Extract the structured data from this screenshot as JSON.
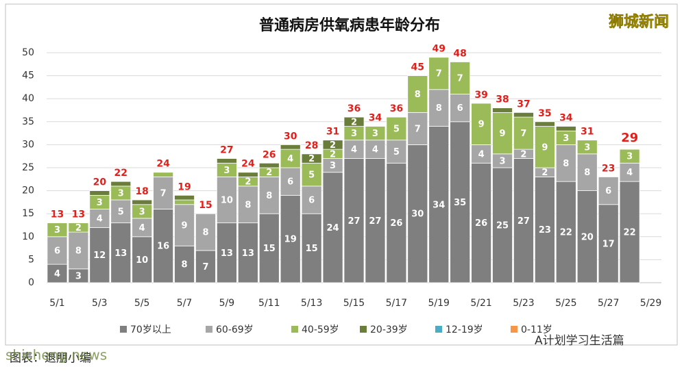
{
  "chart_data": {
    "type": "stacked_bar",
    "title": "普通病房供氧病患年龄分布",
    "categories": [
      "5/1",
      null,
      "5/3",
      null,
      "5/5",
      null,
      "5/7",
      null,
      "5/9",
      null,
      "5/11",
      null,
      "5/13",
      null,
      "5/15",
      null,
      "5/17",
      null,
      "5/19",
      null,
      "5/21",
      null,
      "5/23",
      null,
      "5/25",
      null,
      "5/27",
      null,
      "5/29"
    ],
    "series": [
      {
        "name": "70岁以上",
        "color": "#7f7f7f",
        "values": [
          4,
          3,
          12,
          13,
          10,
          16,
          8,
          7,
          13,
          13,
          15,
          19,
          15,
          24,
          27,
          27,
          26,
          30,
          34,
          35,
          26,
          25,
          27,
          23,
          22,
          20,
          17,
          22,
          null
        ]
      },
      {
        "name": "60-69岁",
        "color": "#a6a6a6",
        "values": [
          6,
          8,
          4,
          5,
          4,
          7,
          9,
          8,
          10,
          8,
          8,
          6,
          6,
          3,
          4,
          4,
          5,
          7,
          8,
          6,
          4,
          3,
          2,
          2,
          8,
          8,
          6,
          4,
          null
        ]
      },
      {
        "name": "40-59岁",
        "color": "#9bbb59",
        "values": [
          3,
          2,
          3,
          3,
          3,
          1,
          1,
          0,
          3,
          2,
          2,
          4,
          5,
          2,
          3,
          3,
          5,
          8,
          7,
          7,
          9,
          9,
          7,
          9,
          3,
          3,
          0,
          3,
          null
        ]
      },
      {
        "name": "20-39岁",
        "color": "#6b7d3a",
        "values": [
          0,
          0,
          1,
          1,
          1,
          0,
          1,
          0,
          1,
          1,
          1,
          1,
          2,
          2,
          2,
          0,
          0,
          0,
          0,
          0,
          0,
          1,
          1,
          1,
          1,
          0,
          0,
          0,
          null
        ]
      },
      {
        "name": "12-19岁",
        "color": "#4bacc6",
        "values": [
          0,
          0,
          0,
          0,
          0,
          0,
          0,
          0,
          0,
          0,
          0,
          0,
          0,
          0,
          0,
          0,
          0,
          0,
          0,
          0,
          0,
          0,
          0,
          0,
          0,
          0,
          0,
          0,
          null
        ]
      },
      {
        "name": "0-11岁",
        "color": "#f79646",
        "values": [
          0,
          0,
          0,
          0,
          0,
          0,
          0,
          0,
          0,
          0,
          0,
          0,
          0,
          0,
          0,
          0,
          0,
          0,
          0,
          0,
          0,
          0,
          0,
          0,
          0,
          0,
          0,
          0,
          null
        ]
      }
    ],
    "totals": [
      13,
      13,
      20,
      22,
      18,
      24,
      19,
      15,
      27,
      24,
      26,
      30,
      28,
      31,
      36,
      34,
      36,
      45,
      49,
      48,
      39,
      38,
      37,
      35,
      34,
      31,
      23,
      29,
      null
    ],
    "totals_color": "#e0201c",
    "ylim": [
      0,
      50
    ],
    "yticks": [
      0,
      5,
      10,
      15,
      20,
      25,
      30,
      35,
      40,
      45,
      50
    ],
    "grid": true,
    "legend": "bottom"
  },
  "watermark": "狮城新闻",
  "footer": {
    "caption": "图表：退朋小编",
    "account": "A计划学习生活篇",
    "site": "shicheng.news"
  }
}
